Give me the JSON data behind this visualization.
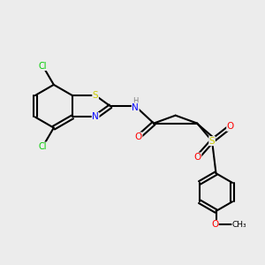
{
  "background_color": "#ececec",
  "atom_colors": {
    "C": "#000000",
    "N": "#0000ff",
    "O": "#ff0000",
    "S": "#cccc00",
    "Cl": "#00cc00",
    "H": "#808080"
  },
  "bond_color": "#000000",
  "bond_width": 1.5
}
